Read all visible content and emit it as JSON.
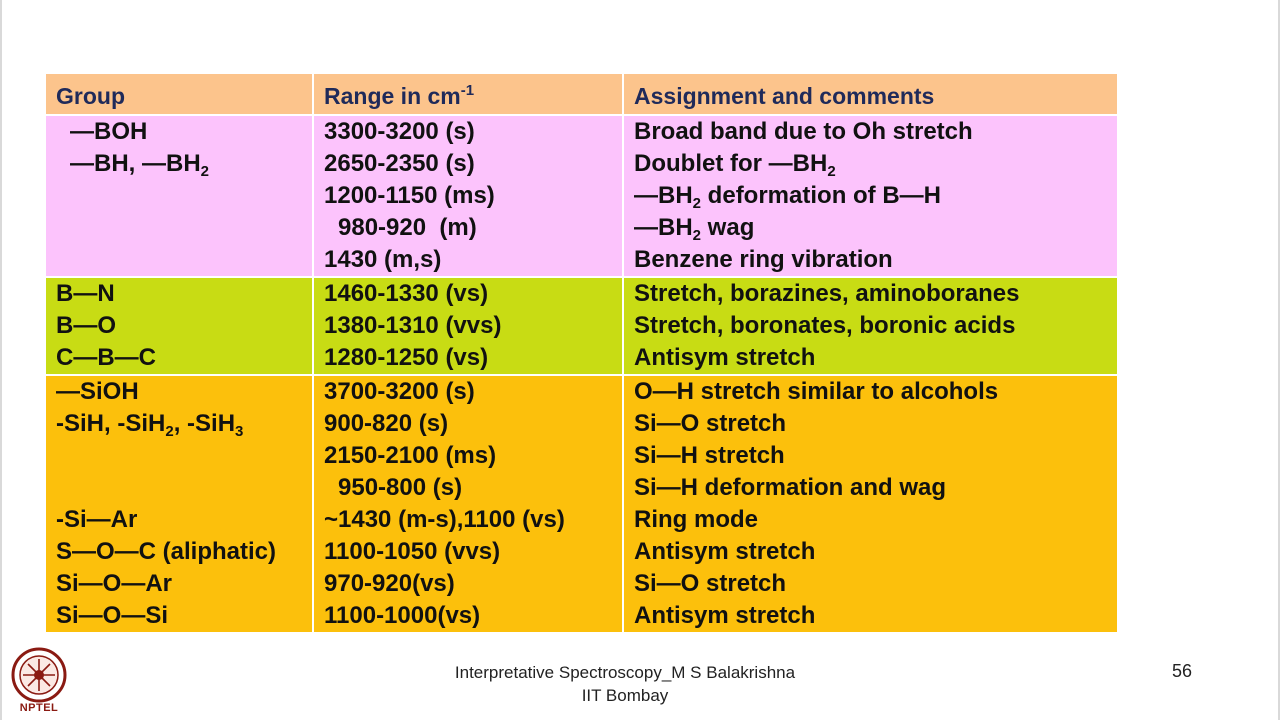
{
  "table": {
    "headers": {
      "group": "Group",
      "range": "Range in cm",
      "range_sup": "-1",
      "assignment": "Assignment and comments"
    },
    "sections": [
      {
        "groups": [
          "—BOH",
          "—BH, —BH2"
        ],
        "ranges": [
          "3300-3200 (s)",
          "2650-2350 (s)",
          "1200-1150 (ms)",
          "980-920  (m)",
          "1430 (m,s)"
        ],
        "assignments": [
          "Broad band due to Oh stretch",
          "Doublet for —BH2",
          "—BH2 deformation of B—H",
          "—BH2 wag",
          "Benzene ring vibration"
        ]
      },
      {
        "groups": [
          "B—N",
          "B—O",
          "C—B—C"
        ],
        "ranges": [
          "1460-1330 (vs)",
          "1380-1310 (vvs)",
          "1280-1250 (vs)"
        ],
        "assignments": [
          "Stretch, borazines, aminoboranes",
          "Stretch, boronates, boronic acids",
          "Antisym stretch"
        ]
      },
      {
        "groups": [
          "—SiOH",
          "-SiH, -SiH2, -SiH3",
          "",
          "",
          "-Si—Ar",
          "S—O—C (aliphatic)",
          "Si—O—Ar",
          "Si—O—Si"
        ],
        "ranges": [
          "3700-3200 (s)",
          "900-820 (s)",
          "2150-2100 (ms)",
          "950-800 (s)",
          "~1430 (m-s),1100 (vs)",
          "1100-1050 (vvs)",
          "970-920(vs)",
          "1100-1000(vs)"
        ],
        "assignments": [
          "O—H stretch similar to alcohols",
          "Si—O stretch",
          "Si—H stretch",
          "Si—H deformation and wag",
          "Ring mode",
          "Antisym stretch",
          "Si—O stretch",
          "Antisym stretch"
        ]
      }
    ]
  },
  "footer": {
    "line1": "Interpretative Spectroscopy_M S Balakrishna",
    "line2": "IIT Bombay",
    "page_number": "56",
    "logo_text": "NPTEL"
  },
  "colors": {
    "header_bg": "#fcc48c",
    "boron_hydride_bg": "#fcc3fc",
    "boron_bond_bg": "#c8dc14",
    "silicon_bg": "#fcc00c"
  }
}
